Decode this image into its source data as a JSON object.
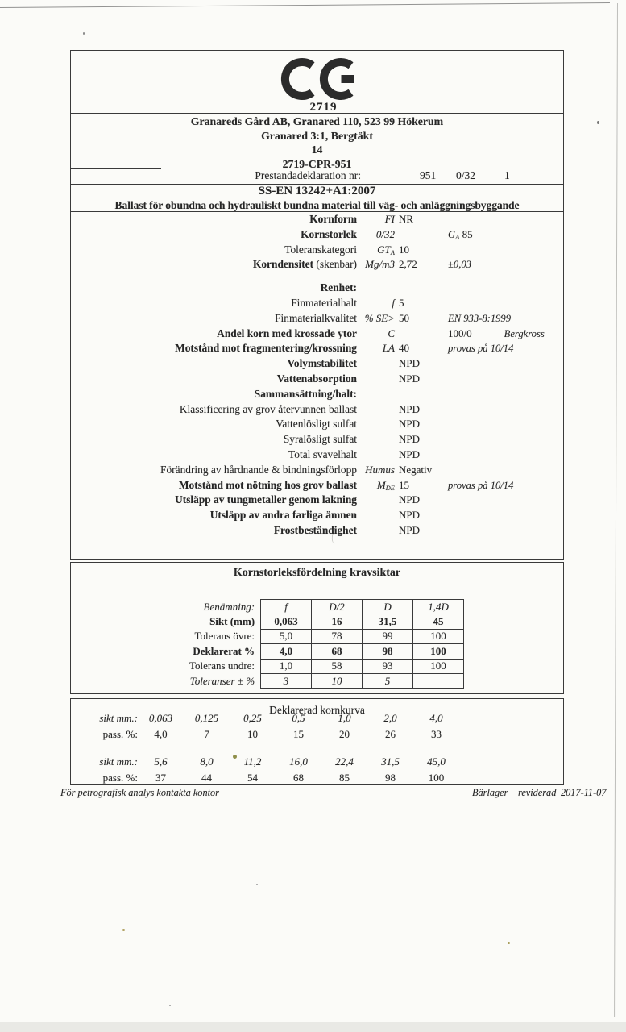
{
  "colors": {
    "ink": "#262626",
    "border": "#3a3a3a",
    "paper": "#fbfbf8"
  },
  "ce": {
    "notified_body": "2719"
  },
  "header": {
    "line1": "Granareds Gård AB, Granared 110, 523 99  Hökerum",
    "line2": "Granared 3:1, Bergtäkt",
    "line3": "14",
    "line4": "2719-CPR-951",
    "decl_label": "Prestandadeklaration nr:",
    "decl_v1": "951",
    "decl_v2": "0/32",
    "decl_v3": "1"
  },
  "standard": {
    "code": "SS-EN 13242+A1:2007",
    "title": "Ballast för obundna och hydrauliskt bundna material till väg- och anläggningsbyggande"
  },
  "properties": [
    {
      "label": "Kornform",
      "bold": true,
      "sym": "FI",
      "val": "NR"
    },
    {
      "label": "Kornstorlek",
      "bold": true,
      "sym": "0/32",
      "note_sym": "G",
      "note_sub": "A",
      "note_val": "85"
    },
    {
      "label": "Toleranskategori",
      "sym": "GT",
      "sym_sub": "A",
      "val": "10"
    },
    {
      "label": "Korndensitet",
      "label_suffix": " (skenbar)",
      "bold": true,
      "sym": "Mg/m3",
      "val": "2,72",
      "note": "±0,03"
    },
    {
      "spacer": true
    },
    {
      "heading": "Renhet:"
    },
    {
      "label": "Finmaterialhalt",
      "sym": "f",
      "val": "5"
    },
    {
      "label": "Finmaterialkvalitet",
      "sym": "% SE>",
      "val": "50",
      "note": "EN 933-8:1999"
    },
    {
      "label": "Andel korn med krossade ytor",
      "bold": true,
      "sym": "C",
      "note_plain": "100/0",
      "note2": "Bergkross"
    },
    {
      "label": "Motstånd mot fragmentering/krossning",
      "bold": true,
      "sym": "LA",
      "val": "40",
      "note": "provas på 10/14"
    },
    {
      "label": "Volymstabilitet",
      "bold": true,
      "val": "NPD"
    },
    {
      "label": "Vattenabsorption",
      "bold": true,
      "val": "NPD"
    },
    {
      "heading": "Sammansättning/halt:"
    },
    {
      "label": "Klassificering av grov återvunnen ballast",
      "val": "NPD"
    },
    {
      "label": "Vattenlösligt sulfat",
      "val": "NPD"
    },
    {
      "label": "Syralösligt sulfat",
      "val": "NPD"
    },
    {
      "label": "Total svavelhalt",
      "val": "NPD"
    },
    {
      "label": "Förändring av hårdnande & bindningsförlopp",
      "sym": "Humus",
      "val": "Negativ"
    },
    {
      "label": "Motstånd mot nötning hos grov ballast",
      "bold": true,
      "sym": "M",
      "sym_sub": "DE",
      "val": "15",
      "note": "provas på 10/14"
    },
    {
      "label": "Utsläpp av tungmetaller genom lakning",
      "bold": true,
      "val": "NPD"
    },
    {
      "label": "Utsläpp av andra farliga ämnen",
      "bold": true,
      "val": "NPD"
    },
    {
      "label": "Frostbeständighet",
      "bold": true,
      "val": "NPD"
    }
  ],
  "sieve_table": {
    "title": "Kornstorleksfördelning kravsiktar",
    "rows": [
      {
        "label": "Benämning:",
        "style": "italic",
        "cells": [
          "f",
          "D/2",
          "D",
          "1,4D"
        ]
      },
      {
        "label": "Sikt (mm)",
        "style": "bold",
        "cells": [
          "0,063",
          "16",
          "31,5",
          "45"
        ]
      },
      {
        "label": "Tolerans övre:",
        "style": "normal",
        "cells": [
          "5,0",
          "78",
          "99",
          "100"
        ]
      },
      {
        "label": "Deklarerat %",
        "style": "bold",
        "cells": [
          "4,0",
          "68",
          "98",
          "100"
        ]
      },
      {
        "label": "Tolerans undre:",
        "style": "normal",
        "cells": [
          "1,0",
          "58",
          "93",
          "100"
        ]
      },
      {
        "label": "Toleranser ± %",
        "style": "italic",
        "cells": [
          "3",
          "10",
          "5",
          ""
        ]
      }
    ]
  },
  "kornkurva": {
    "title": "Deklarerad kornkurva",
    "sikt_label": "sikt mm.:",
    "pass_label": "pass. %:",
    "groups": [
      {
        "sikt": [
          "0,063",
          "0,125",
          "0,25",
          "0,5",
          "1,0",
          "2,0",
          "4,0"
        ],
        "pass": [
          "4,0",
          "7",
          "10",
          "15",
          "20",
          "26",
          "33"
        ]
      },
      {
        "sikt": [
          "5,6",
          "8,0",
          "11,2",
          "16,0",
          "22,4",
          "31,5",
          "45,0"
        ],
        "pass": [
          "37",
          "44",
          "54",
          "68",
          "85",
          "98",
          "100"
        ]
      }
    ]
  },
  "footer": {
    "left": "För petrografisk analys kontakta kontor",
    "product": "Bärlager",
    "revised_label": "reviderad",
    "revised_date": "2017-11-07"
  }
}
